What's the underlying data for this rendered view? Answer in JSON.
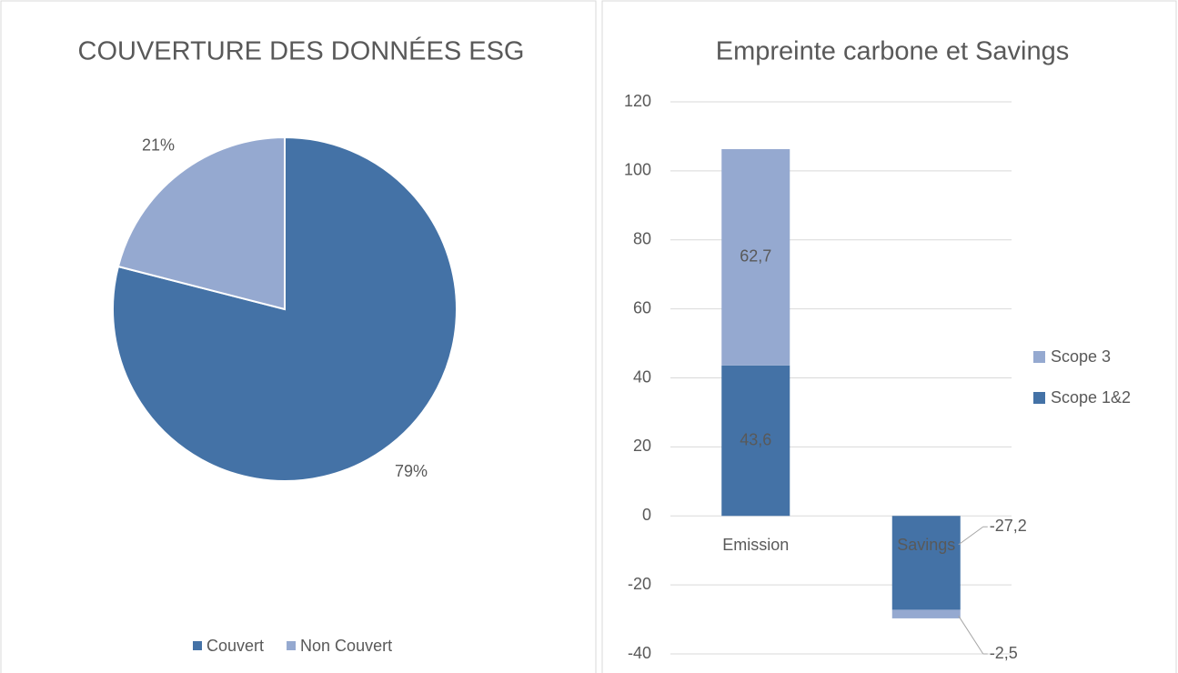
{
  "chart_data": [
    {
      "type": "pie",
      "title": "COUVERTURE DES DONNÉES ESG",
      "categories": [
        "Couvert",
        "Non Couvert"
      ],
      "values": [
        79,
        21
      ],
      "value_labels": [
        "79%",
        "21%"
      ],
      "colors": [
        "#4472a6",
        "#95a9d0"
      ],
      "legend": "bottom"
    },
    {
      "type": "bar",
      "stacked": true,
      "title": "Empreinte carbone et Savings",
      "categories": [
        "Emission",
        "Savings"
      ],
      "series": [
        {
          "name": "Scope 1&2",
          "color": "#4472a6",
          "values": [
            43.6,
            -27.2
          ],
          "value_labels": [
            "43,6",
            "-27,2"
          ]
        },
        {
          "name": "Scope 3",
          "color": "#95a9d0",
          "values": [
            62.7,
            -2.5
          ],
          "value_labels": [
            "62,7",
            "-2,5"
          ]
        }
      ],
      "ylim": [
        -40,
        120
      ],
      "yticks": [
        -40,
        -20,
        0,
        20,
        40,
        60,
        80,
        100,
        120
      ],
      "grid": true,
      "legend": "right"
    }
  ]
}
